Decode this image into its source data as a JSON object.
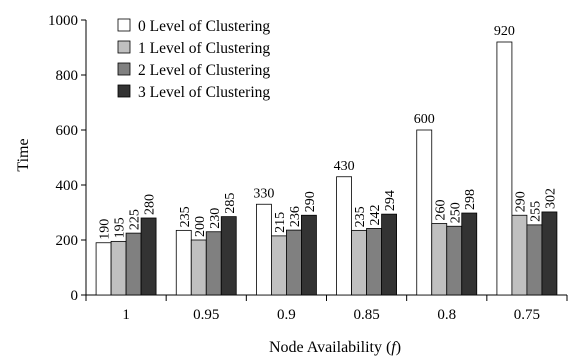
{
  "chart_data": {
    "type": "bar",
    "xlabel": "Node Availability (",
    "xlabel_var": "f",
    "xlabel_close": ")",
    "ylabel": "Time",
    "ylim": [
      0,
      1000
    ],
    "yticks": [
      0,
      200,
      400,
      600,
      800,
      1000
    ],
    "categories": [
      "1",
      "0.95",
      "0.9",
      "0.85",
      "0.8",
      "0.75"
    ],
    "legend_position": "top-left",
    "series": [
      {
        "name": "0 Level of Clustering",
        "color": "#ffffff",
        "values": [
          190,
          235,
          330,
          430,
          600,
          920
        ]
      },
      {
        "name": "1 Level of Clustering",
        "color": "#c0c0c0",
        "values": [
          195,
          200,
          215,
          235,
          260,
          290
        ]
      },
      {
        "name": "2 Level of Clustering",
        "color": "#808080",
        "values": [
          225,
          230,
          236,
          242,
          250,
          255
        ]
      },
      {
        "name": "3 Level of Clustering",
        "color": "#333333",
        "values": [
          280,
          285,
          290,
          294,
          298,
          302
        ]
      }
    ]
  }
}
